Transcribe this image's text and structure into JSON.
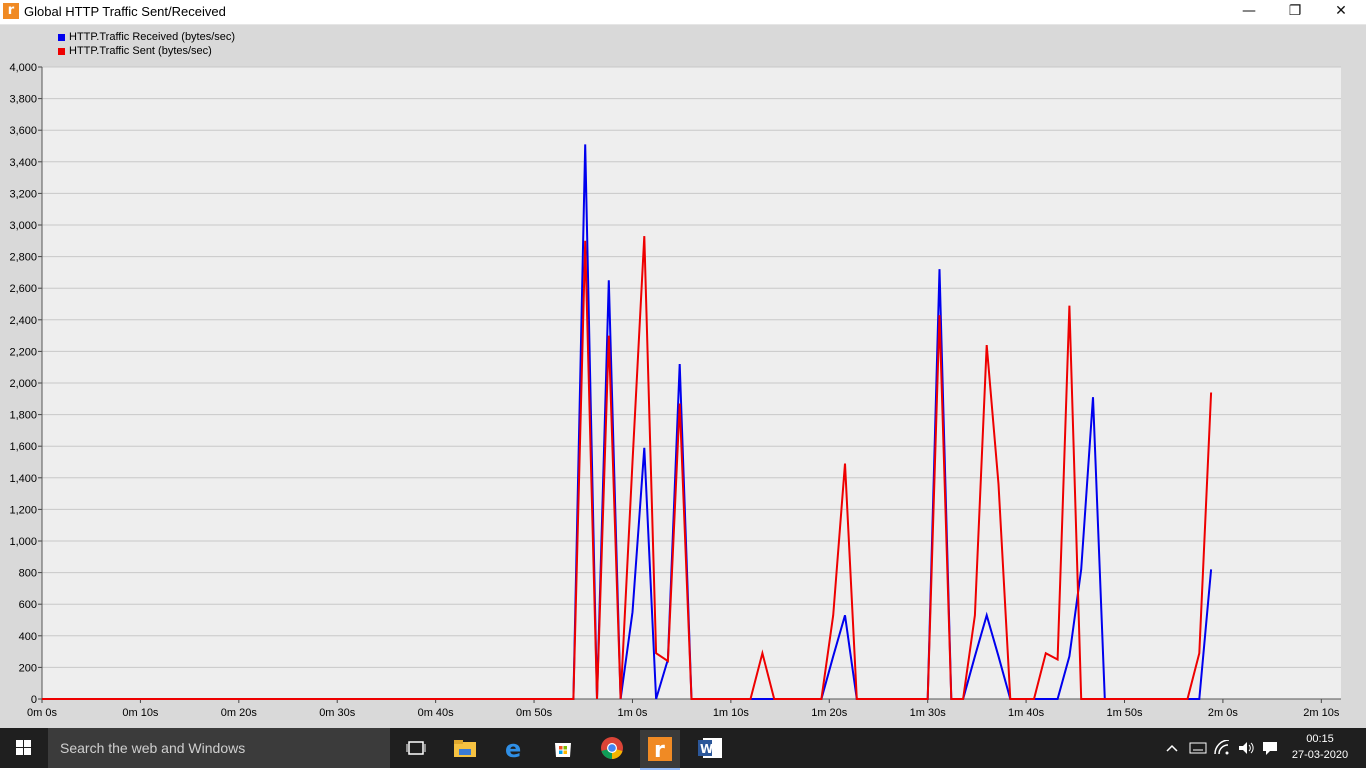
{
  "window": {
    "title": "Global HTTP Traffic Sent/Received",
    "app_icon_letter": "r",
    "minimize": "—",
    "maximize": "❐",
    "close": "✕"
  },
  "colors": {
    "received": "#0000ee",
    "sent": "#ee0000",
    "plot_bg": "#eeeeee",
    "frame_bg": "#d9d9d9"
  },
  "chart_data": {
    "type": "line",
    "title": "Global HTTP Traffic Sent/Received",
    "xlabel": "",
    "ylabel": "",
    "xlim": [
      0,
      132
    ],
    "ylim": [
      0,
      4000
    ],
    "x_ticks": [
      0,
      10,
      20,
      30,
      40,
      50,
      60,
      70,
      80,
      90,
      100,
      110,
      120,
      130
    ],
    "x_tick_labels": [
      "0m 0s",
      "0m 10s",
      "0m 20s",
      "0m 30s",
      "0m 40s",
      "0m 50s",
      "1m 0s",
      "1m 10s",
      "1m 20s",
      "1m 30s",
      "1m 40s",
      "1m 50s",
      "2m 0s",
      "2m 10s"
    ],
    "y_ticks": [
      0,
      200,
      400,
      600,
      800,
      1000,
      1200,
      1400,
      1600,
      1800,
      2000,
      2200,
      2400,
      2600,
      2800,
      3000,
      3200,
      3400,
      3600,
      3800,
      4000
    ],
    "y_tick_labels": [
      "0",
      "200",
      "400",
      "600",
      "800",
      "1,000",
      "1,200",
      "1,400",
      "1,600",
      "1,800",
      "2,000",
      "2,200",
      "2,400",
      "2,600",
      "2,800",
      "3,000",
      "3,200",
      "3,400",
      "3,600",
      "3,800",
      "4,000"
    ],
    "grid": true,
    "legend_position": "top-left",
    "series": [
      {
        "name": "HTTP.Traffic Received (bytes/sec)",
        "color": "#0000ee",
        "x": [
          0,
          54,
          55.2,
          56.4,
          57.6,
          58.8,
          60,
          61.2,
          62.4,
          63.6,
          64.8,
          66,
          67.2,
          68.4,
          69.6,
          70.8,
          72,
          73.2,
          74.4,
          75.6,
          76.8,
          78,
          79.2,
          80.4,
          81.6,
          82.8,
          84,
          85.2,
          86.4,
          87.6,
          88.8,
          90,
          91.2,
          92.4,
          93.6,
          94.8,
          96,
          97.2,
          98.4,
          99.6,
          100.8,
          102,
          103.2,
          104.4,
          105.6,
          106.8,
          108,
          109.2,
          110.4,
          111.6,
          112.8,
          114,
          115.2,
          116.4,
          117.6,
          118.8
        ],
        "y": [
          0,
          0,
          3510,
          0,
          2650,
          0,
          550,
          1590,
          0,
          250,
          2120,
          0,
          0,
          0,
          0,
          0,
          0,
          0,
          0,
          0,
          0,
          0,
          0,
          270,
          530,
          0,
          0,
          0,
          0,
          0,
          0,
          0,
          2720,
          0,
          0,
          270,
          530,
          270,
          0,
          0,
          0,
          0,
          0,
          270,
          820,
          1910,
          0,
          0,
          0,
          0,
          0,
          0,
          0,
          0,
          0,
          820
        ]
      },
      {
        "name": "HTTP.Traffic Sent (bytes/sec)",
        "color": "#ee0000",
        "x": [
          0,
          54,
          55.2,
          56.4,
          57.6,
          58.8,
          60,
          61.2,
          62.4,
          63.6,
          64.8,
          66,
          67.2,
          68.4,
          69.6,
          70.8,
          72,
          73.2,
          74.4,
          75.6,
          76.8,
          78,
          79.2,
          80.4,
          81.6,
          82.8,
          84,
          85.2,
          86.4,
          87.6,
          88.8,
          90,
          91.2,
          92.4,
          93.6,
          94.8,
          96,
          97.2,
          98.4,
          99.6,
          100.8,
          102,
          103.2,
          104.4,
          105.6,
          106.8,
          108,
          109.2,
          110.4,
          111.6,
          112.8,
          114,
          115.2,
          116.4,
          117.6,
          118.8
        ],
        "y": [
          0,
          0,
          2900,
          0,
          2300,
          0,
          1500,
          2930,
          290,
          240,
          1870,
          0,
          0,
          0,
          0,
          0,
          0,
          290,
          0,
          0,
          0,
          0,
          0,
          530,
          1490,
          0,
          0,
          0,
          0,
          0,
          0,
          0,
          2430,
          0,
          0,
          530,
          2240,
          1360,
          0,
          0,
          0,
          290,
          250,
          2490,
          0,
          0,
          0,
          0,
          0,
          0,
          0,
          0,
          0,
          0,
          290,
          1940
        ]
      }
    ]
  },
  "taskbar": {
    "search_placeholder": "Search the web and Windows",
    "time": "00:15",
    "date": "27-03-2020"
  }
}
